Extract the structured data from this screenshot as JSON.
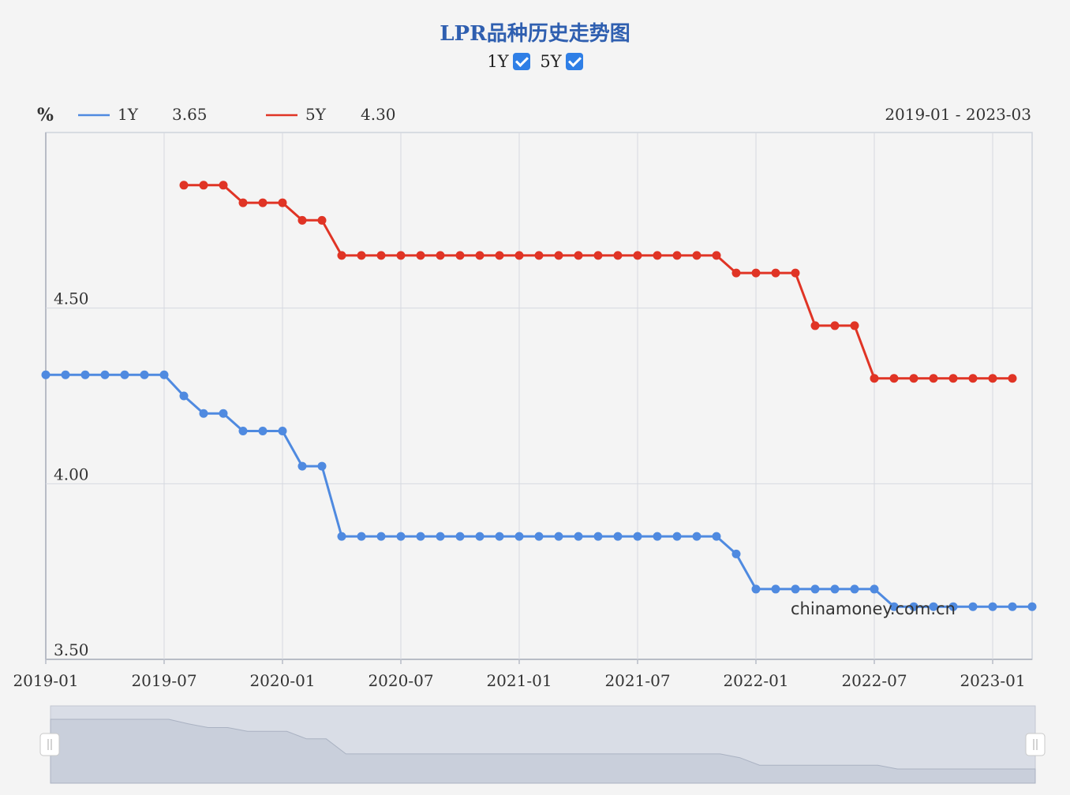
{
  "header": {
    "title": "LPR品种历史走势图",
    "toggle_1y": "1Y",
    "toggle_5y": "5Y"
  },
  "legend": {
    "unit": "%",
    "series_1y_name": "1Y",
    "series_1y_value": "3.65",
    "series_5y_name": "5Y",
    "series_5y_value": "4.30",
    "range": "2019-01 - 2023-03"
  },
  "watermark": "chinamoney.com.cn",
  "chart_data": {
    "type": "line",
    "x_start": "2019-01",
    "x_end": "2023-03",
    "x_ticks": [
      "2019-01",
      "2019-07",
      "2020-01",
      "2020-07",
      "2021-01",
      "2021-07",
      "2022-01",
      "2022-07",
      "2023-01"
    ],
    "y_ticks": [
      "3.50",
      "4.00",
      "4.50"
    ],
    "ylim": [
      3.5,
      5.0
    ],
    "grid": true,
    "legend_position": "top-left",
    "series": [
      {
        "name": "1Y",
        "color": "#4f8ae0",
        "start": "2019-01",
        "values": [
          4.31,
          4.31,
          4.31,
          4.31,
          4.31,
          4.31,
          4.31,
          4.25,
          4.2,
          4.2,
          4.15,
          4.15,
          4.15,
          4.05,
          4.05,
          3.85,
          3.85,
          3.85,
          3.85,
          3.85,
          3.85,
          3.85,
          3.85,
          3.85,
          3.85,
          3.85,
          3.85,
          3.85,
          3.85,
          3.85,
          3.85,
          3.85,
          3.85,
          3.85,
          3.85,
          3.8,
          3.7,
          3.7,
          3.7,
          3.7,
          3.7,
          3.7,
          3.7,
          3.65,
          3.65,
          3.65,
          3.65,
          3.65,
          3.65,
          3.65,
          3.65
        ]
      },
      {
        "name": "5Y",
        "color": "#e03425",
        "start": "2019-08",
        "values": [
          4.85,
          4.85,
          4.85,
          4.8,
          4.8,
          4.8,
          4.75,
          4.75,
          4.65,
          4.65,
          4.65,
          4.65,
          4.65,
          4.65,
          4.65,
          4.65,
          4.65,
          4.65,
          4.65,
          4.65,
          4.65,
          4.65,
          4.65,
          4.65,
          4.65,
          4.65,
          4.65,
          4.65,
          4.6,
          4.6,
          4.6,
          4.6,
          4.45,
          4.45,
          4.45,
          4.3,
          4.3,
          4.3,
          4.3,
          4.3,
          4.3,
          4.3,
          4.3
        ]
      }
    ]
  }
}
